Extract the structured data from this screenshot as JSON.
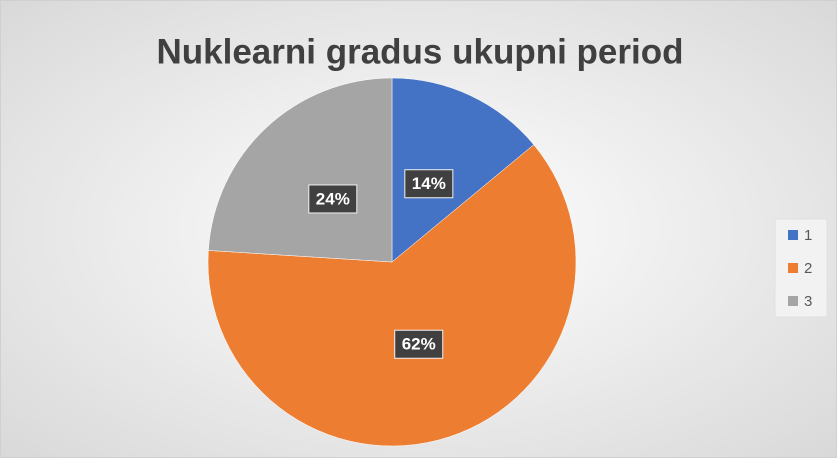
{
  "chart_data": {
    "type": "pie",
    "title": "Nuklearni gradus ukupni period",
    "categories": [
      "1",
      "2",
      "3"
    ],
    "values": [
      14,
      62,
      24
    ],
    "value_labels": [
      "14%",
      "62%",
      "24%"
    ],
    "colors": [
      "#4472c4",
      "#ed7d31",
      "#a5a5a5"
    ],
    "legend": "right"
  }
}
